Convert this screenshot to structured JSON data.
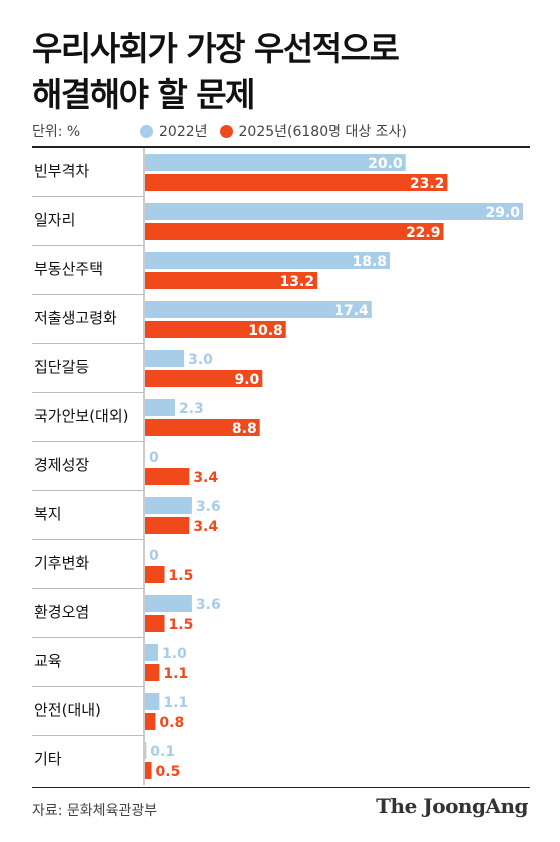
{
  "title_line1": "우리사회가 가장 우선적으로",
  "title_line2": "해결해야 할 문제",
  "unit_label": "단위: %",
  "colors": {
    "s2022": "#a8cde9",
    "s2025": "#f04a1c",
    "rule": "#222222",
    "grid": "#999999"
  },
  "source": "자료: 문화체육관광부",
  "brand": "The JoongAng",
  "chart_data": {
    "type": "bar",
    "orientation": "horizontal",
    "categories": [
      "빈부격차",
      "일자리",
      "부동산주택",
      "저출생고령화",
      "집단갈등",
      "국가안보(대외)",
      "경제성장",
      "복지",
      "기후변화",
      "환경오염",
      "교육",
      "안전(대내)",
      "기타"
    ],
    "series": [
      {
        "name": "2022년",
        "values": [
          20.0,
          29.0,
          18.8,
          17.4,
          3.0,
          2.3,
          0,
          3.6,
          0,
          3.6,
          1.0,
          1.1,
          0.1
        ]
      },
      {
        "name": "2025년(6180명 대상 조사)",
        "values": [
          23.2,
          22.9,
          13.2,
          10.8,
          9.0,
          8.8,
          3.4,
          3.4,
          1.5,
          1.5,
          1.1,
          0.8,
          0.5
        ]
      }
    ],
    "labels": [
      [
        "20.0",
        "23.2"
      ],
      [
        "29.0",
        "22.9"
      ],
      [
        "18.8",
        "13.2"
      ],
      [
        "17.4",
        "10.8"
      ],
      [
        "3.0",
        "9.0"
      ],
      [
        "2.3",
        "8.8"
      ],
      [
        "0",
        "3.4"
      ],
      [
        "3.6",
        "3.4"
      ],
      [
        "0",
        "1.5"
      ],
      [
        "3.6",
        "1.5"
      ],
      [
        "1.0",
        "1.1"
      ],
      [
        "1.1",
        "0.8"
      ],
      [
        "0.1",
        "0.5"
      ]
    ],
    "xlim": [
      0,
      29.0
    ],
    "legend": "top",
    "grid": false
  }
}
